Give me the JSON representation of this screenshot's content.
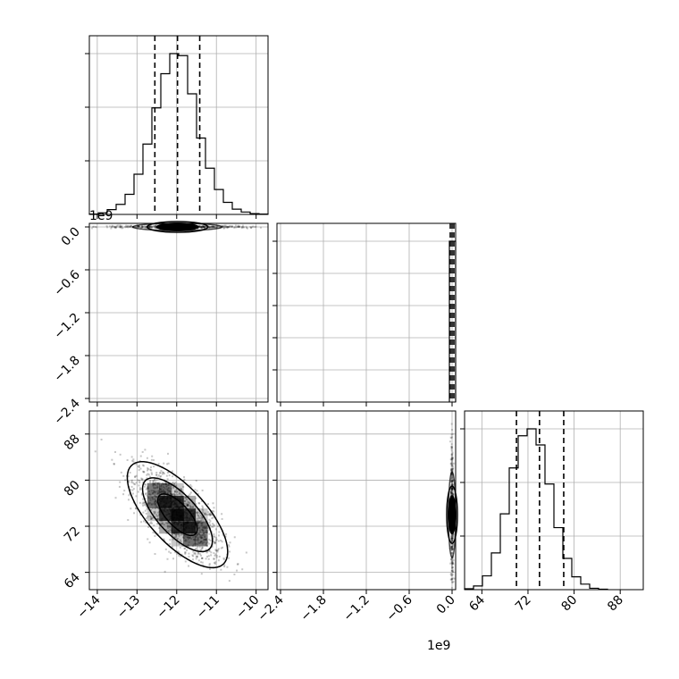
{
  "chart_data": {
    "type": "corner",
    "parameters": [
      {
        "name": "",
        "offset_label": "1e9",
        "range": [
          -14.2,
          -9.7
        ],
        "ticks": [
          -14,
          -13,
          -12,
          -11,
          -10
        ],
        "tick_labels": [
          "−14",
          "−13",
          "−12",
          "−11",
          "−10"
        ]
      },
      {
        "name": "",
        "offset_label": "1e9",
        "range": [
          -2.45,
          0.05
        ],
        "ticks": [
          -2.4,
          -1.8,
          -1.2,
          -0.6,
          0.0
        ],
        "tick_labels": [
          "−2.4",
          "−1.8",
          "−1.2",
          "−0.6",
          "0.0"
        ]
      },
      {
        "name": "",
        "offset_label": "",
        "range": [
          61,
          92
        ],
        "ticks": [
          64,
          72,
          80,
          88
        ],
        "tick_labels": [
          "64",
          "72",
          "80",
          "88"
        ]
      }
    ],
    "histograms": {
      "p1": {
        "edges_start": -14.2,
        "bin_width": 0.225,
        "counts": [
          1,
          4,
          12,
          25,
          50,
          100,
          175,
          265,
          350,
          400,
          395,
          300,
          190,
          115,
          62,
          30,
          13,
          6,
          2,
          1
        ],
        "quantiles": [
          -12.55,
          -11.98,
          -11.42
        ]
      },
      "p2": {
        "spike_at": 0.0,
        "quantiles": [
          -0.01,
          0.0,
          0.01
        ]
      },
      "p3": {
        "edges_start": 61.0,
        "bin_width": 1.55,
        "counts": [
          2,
          8,
          30,
          80,
          165,
          265,
          335,
          350,
          315,
          230,
          135,
          68,
          28,
          12,
          3,
          1
        ],
        "quantiles": [
          70.0,
          74.0,
          78.2
        ]
      }
    },
    "correlations": {
      "p1_p2": {
        "center": [
          -11.98,
          0.0
        ],
        "spread": [
          0.55,
          0.005
        ]
      },
      "p1_p3": {
        "center": [
          -11.98,
          74.0
        ],
        "correlation": -0.7,
        "spread": [
          0.55,
          4.0
        ]
      },
      "p2_p3": {
        "center": [
          0.0,
          74.0
        ],
        "spread": [
          0.005,
          4.0
        ]
      }
    }
  }
}
